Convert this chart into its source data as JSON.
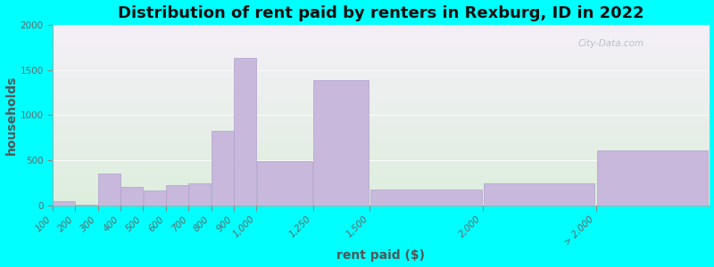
{
  "title": "Distribution of rent paid by renters in Rexburg, ID in 2022",
  "xlabel": "rent paid ($)",
  "ylabel": "households",
  "bar_left_edges": [
    100,
    200,
    300,
    400,
    500,
    600,
    700,
    800,
    900,
    1000,
    1250,
    1500,
    2000,
    2500
  ],
  "bar_widths": [
    100,
    100,
    100,
    100,
    100,
    100,
    100,
    100,
    100,
    250,
    250,
    500,
    500,
    500
  ],
  "values": [
    50,
    10,
    350,
    200,
    160,
    220,
    240,
    830,
    1630,
    490,
    1390,
    170,
    240,
    610
  ],
  "bar_color": "#c8b8dc",
  "bar_edge_color": "#b0a0cc",
  "background_color": "#00ffff",
  "plot_bg_colors": [
    "#ddeedd",
    "#f5f0f8"
  ],
  "ylim": [
    0,
    2000
  ],
  "yticks": [
    0,
    500,
    1000,
    1500,
    2000
  ],
  "xtick_positions": [
    100,
    200,
    300,
    400,
    500,
    600,
    700,
    800,
    900,
    1000,
    1250,
    1500,
    2000,
    2500
  ],
  "xtick_labels": [
    "100",
    "200",
    "300",
    "400",
    "500",
    "600",
    "700",
    "800",
    "900",
    "1,000",
    "1,250",
    "1,500",
    "2,000",
    "> 2,000"
  ],
  "xlim": [
    100,
    3000
  ],
  "title_fontsize": 13,
  "axis_label_fontsize": 10,
  "tick_fontsize": 7.5,
  "watermark_text": "City-Data.com",
  "watermark_color": "#b0b8c8"
}
